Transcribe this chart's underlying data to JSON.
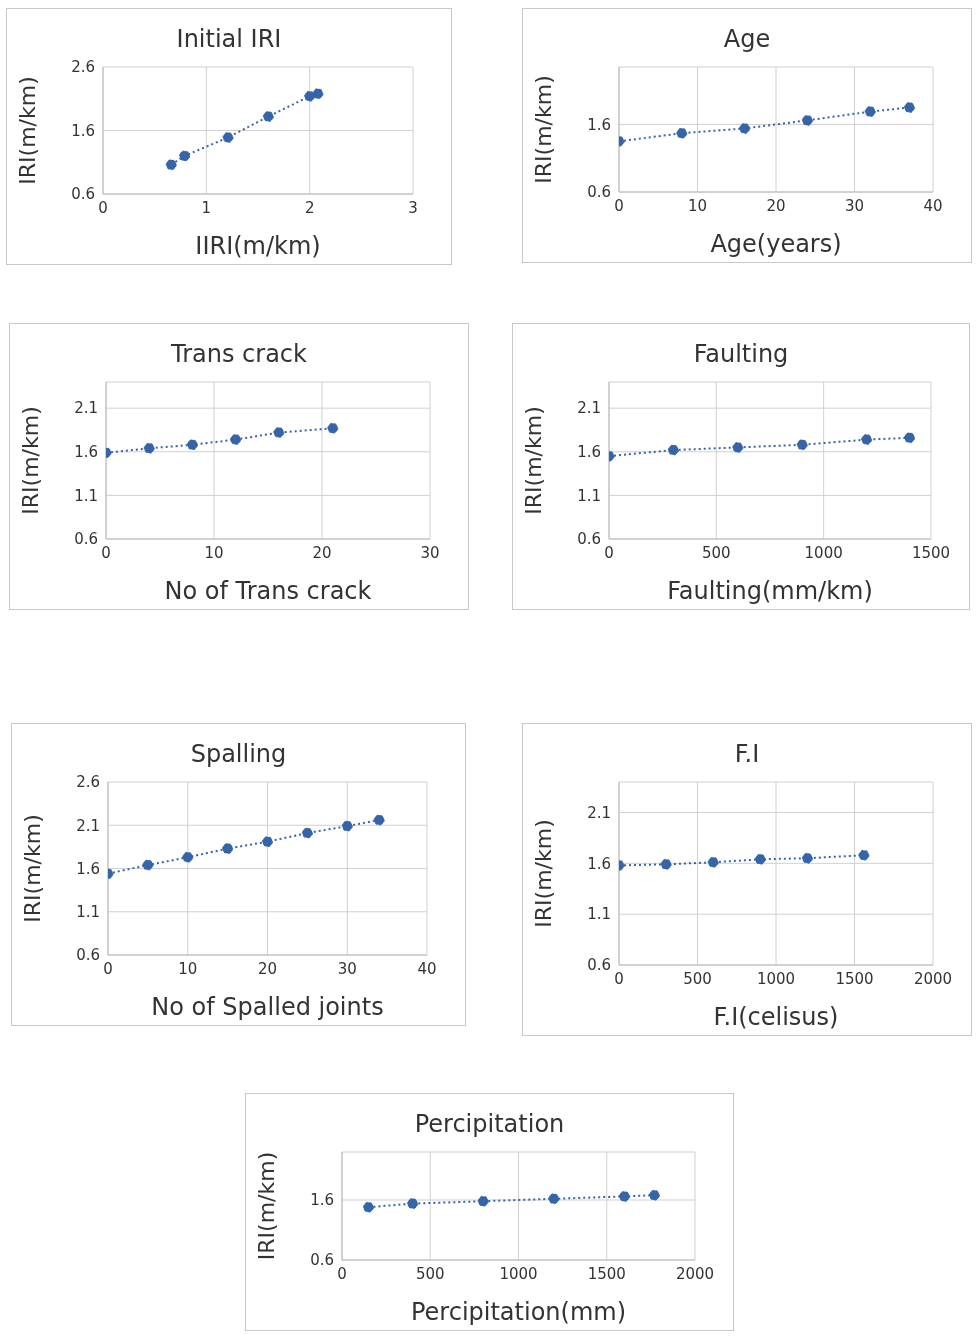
{
  "chart_data": [
    {
      "type": "line",
      "title": "Initial IRI",
      "xlabel": "IIRI(m/km)",
      "ylabel": "IRI(m/km)",
      "x": [
        0.66,
        0.79,
        1.21,
        1.6,
        2.0,
        2.08
      ],
      "values": [
        1.06,
        1.2,
        1.49,
        1.82,
        2.14,
        2.18
      ],
      "color": "#3565a8",
      "xlim": [
        0,
        3
      ],
      "xticks": [
        0,
        1,
        2,
        3
      ],
      "ylim": [
        0.6,
        2.6
      ],
      "yticks": [
        0.6,
        1.6,
        2.6
      ],
      "grid": true,
      "marker": "circle",
      "line_style": "dotted"
    },
    {
      "type": "line",
      "title": "Age",
      "xlabel": "Age(years)",
      "ylabel": "IRI(m/km)",
      "x": [
        0,
        8,
        16,
        24,
        32,
        37
      ],
      "values": [
        1.35,
        1.47,
        1.54,
        1.66,
        1.79,
        1.85
      ],
      "color": "#3565a8",
      "xlim": [
        0,
        40
      ],
      "xticks": [
        0,
        10,
        20,
        30,
        40
      ],
      "ylim": [
        0.6,
        2.45
      ],
      "yticks": [
        0.6,
        1.6
      ],
      "grid": true,
      "marker": "circle",
      "line_style": "dotted"
    },
    {
      "type": "line",
      "title": "Trans crack",
      "xlabel": "No of Trans crack",
      "ylabel": "IRI(m/km)",
      "x": [
        0,
        4,
        8,
        12,
        16,
        21
      ],
      "values": [
        1.59,
        1.64,
        1.68,
        1.74,
        1.82,
        1.87
      ],
      "color": "#3565a8",
      "xlim": [
        0,
        30
      ],
      "xticks": [
        0,
        10,
        20,
        30
      ],
      "ylim": [
        0.6,
        2.4
      ],
      "yticks": [
        0.6,
        1.1,
        1.6,
        2.1
      ],
      "grid": true,
      "marker": "circle",
      "line_style": "dotted"
    },
    {
      "type": "line",
      "title": "Faulting",
      "xlabel": "Faulting(mm/km)",
      "ylabel": "IRI(m/km)",
      "x": [
        0,
        300,
        600,
        900,
        1200,
        1400
      ],
      "values": [
        1.55,
        1.62,
        1.65,
        1.68,
        1.74,
        1.76
      ],
      "color": "#3565a8",
      "xlim": [
        0,
        1500
      ],
      "xticks": [
        0,
        500,
        1000,
        1500
      ],
      "ylim": [
        0.6,
        2.4
      ],
      "yticks": [
        0.6,
        1.1,
        1.6,
        2.1
      ],
      "grid": true,
      "marker": "circle",
      "line_style": "dotted"
    },
    {
      "type": "line",
      "title": "Spalling",
      "xlabel": "No of Spalled joints",
      "ylabel": "IRI(m/km)",
      "x": [
        0,
        5,
        10,
        15,
        20,
        25,
        30,
        34
      ],
      "values": [
        1.54,
        1.64,
        1.73,
        1.83,
        1.91,
        2.01,
        2.09,
        2.16
      ],
      "color": "#3565a8",
      "xlim": [
        0,
        40
      ],
      "xticks": [
        0,
        10,
        20,
        30,
        40
      ],
      "ylim": [
        0.6,
        2.6
      ],
      "yticks": [
        0.6,
        1.1,
        1.6,
        2.1,
        2.6
      ],
      "grid": true,
      "marker": "circle",
      "line_style": "dotted"
    },
    {
      "type": "line",
      "title": "F.I",
      "xlabel": "F.I(celisus)",
      "ylabel": "IRI(m/km)",
      "x": [
        0,
        300,
        600,
        900,
        1200,
        1560
      ],
      "values": [
        1.58,
        1.59,
        1.61,
        1.64,
        1.65,
        1.68
      ],
      "color": "#3565a8",
      "xlim": [
        0,
        2000
      ],
      "xticks": [
        0,
        500,
        1000,
        1500,
        2000
      ],
      "ylim": [
        0.6,
        2.4
      ],
      "yticks": [
        0.6,
        1.1,
        1.6,
        2.1
      ],
      "grid": true,
      "marker": "circle",
      "line_style": "dotted"
    },
    {
      "type": "line",
      "title": "Percipitation",
      "xlabel": "Percipitation(mm)",
      "ylabel": "IRI(m/km)",
      "x": [
        150,
        400,
        800,
        1200,
        1600,
        1770
      ],
      "values": [
        1.48,
        1.54,
        1.58,
        1.62,
        1.66,
        1.68
      ],
      "color": "#3565a8",
      "xlim": [
        0,
        2000
      ],
      "xticks": [
        0,
        500,
        1000,
        1500,
        2000
      ],
      "ylim": [
        0.6,
        2.4
      ],
      "yticks": [
        0.6,
        1.6
      ],
      "grid": true,
      "marker": "circle",
      "line_style": "dotted"
    }
  ]
}
